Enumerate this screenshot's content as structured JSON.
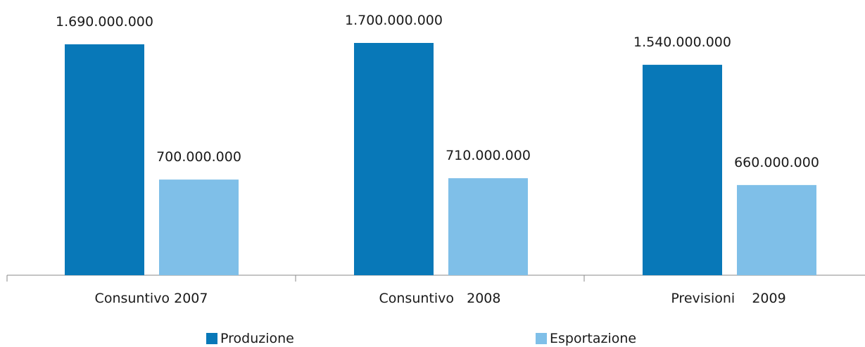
{
  "chart_data": {
    "type": "bar",
    "title": "",
    "xlabel": "",
    "ylabel": "",
    "ylim": [
      0,
      1900000000
    ],
    "grid": false,
    "legend_position": "bottom",
    "categories": [
      "Consuntivo 2007",
      "Consuntivo   2008",
      "Previsioni    2009"
    ],
    "series": [
      {
        "name": "Produzione",
        "color": "#0878B8",
        "values": [
          1690000000,
          1700000000,
          1540000000
        ],
        "value_labels": [
          "1.690.000.000",
          "1.700.000.000",
          "1.540.000.000"
        ]
      },
      {
        "name": "Esportazione",
        "color": "#7FBFE8",
        "values": [
          700000000,
          710000000,
          660000000
        ],
        "value_labels": [
          "700.000.000",
          "710.000.000",
          "660.000.000"
        ]
      }
    ]
  }
}
